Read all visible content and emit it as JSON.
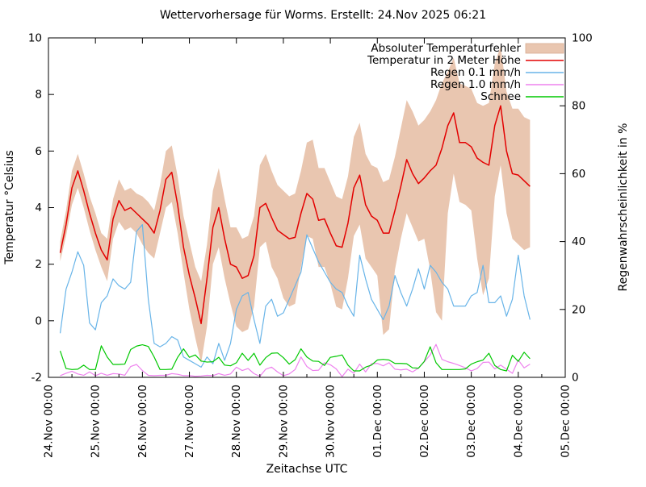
{
  "title": "Wettervorhersage für Worms. Erstellt: 24.Nov 2025 06:21",
  "chart_data": {
    "type": "line",
    "title": "Wettervorhersage für Worms. Erstellt: 24.Nov 2025 06:21",
    "xlabel": "Zeitachse UTC",
    "ylabel_left": "Temperatur °Celsius",
    "ylabel_right": "Regenwahrscheinlichkeit in %",
    "ylim_left": [
      -2,
      10
    ],
    "ylim_right": [
      0,
      100
    ],
    "grid": false,
    "legend_position": "top-right-inside",
    "x_range_hours": [
      0,
      264
    ],
    "x_tick_labels": [
      "24.Nov 00:00",
      "25.Nov 00:00",
      "26.Nov 00:00",
      "27.Nov 00:00",
      "28.Nov 00:00",
      "29.Nov 00:00",
      "30.Nov 00:00",
      "01.Dec 00:00",
      "02.Dec 00:00",
      "03.Dec 00:00",
      "04.Dec 00:00",
      "05.Dec 00:00"
    ],
    "x_tick_hours": [
      0,
      24,
      48,
      72,
      96,
      120,
      144,
      168,
      192,
      216,
      240,
      264
    ],
    "x_minor_tick_hours": [
      12,
      36,
      60,
      84,
      108,
      132,
      156,
      180,
      204,
      228,
      252
    ],
    "y_ticks_left": [
      -2,
      0,
      2,
      4,
      6,
      8,
      10
    ],
    "y_ticks_right": [
      0,
      20,
      40,
      60,
      80,
      100
    ],
    "x_hours": [
      6,
      9,
      12,
      15,
      18,
      21,
      24,
      27,
      30,
      33,
      36,
      39,
      42,
      45,
      48,
      51,
      54,
      57,
      60,
      63,
      66,
      69,
      72,
      75,
      78,
      81,
      84,
      87,
      90,
      93,
      96,
      99,
      102,
      105,
      108,
      111,
      114,
      117,
      120,
      123,
      126,
      129,
      132,
      135,
      138,
      141,
      144,
      147,
      150,
      153,
      156,
      159,
      162,
      165,
      168,
      171,
      174,
      177,
      180,
      183,
      186,
      189,
      192,
      195,
      198,
      201,
      204,
      207,
      210,
      213,
      216,
      219,
      222,
      225,
      228,
      231,
      234,
      237,
      240,
      243,
      246
    ],
    "series": [
      {
        "name": "Absoluter Temperaturfehler",
        "type": "band",
        "axis": "left",
        "color": "#e9c6b0",
        "upper": [
          2.8,
          3.9,
          5.3,
          5.9,
          5.2,
          4.4,
          3.8,
          3.1,
          2.9,
          4.3,
          5.0,
          4.6,
          4.7,
          4.5,
          4.4,
          4.2,
          3.9,
          4.8,
          6.0,
          6.2,
          5.1,
          3.7,
          2.8,
          1.9,
          1.4,
          2.7,
          4.6,
          5.4,
          4.3,
          3.3,
          3.3,
          2.9,
          3.0,
          3.7,
          5.5,
          5.9,
          5.3,
          4.8,
          4.6,
          4.4,
          4.5,
          5.3,
          6.3,
          6.4,
          5.4,
          5.4,
          4.9,
          4.4,
          4.3,
          5.1,
          6.5,
          7.0,
          5.9,
          5.5,
          5.4,
          4.9,
          5.0,
          5.8,
          6.8,
          7.8,
          7.4,
          6.9,
          7.1,
          7.4,
          7.8,
          8.4,
          8.8,
          9.3,
          8.4,
          8.3,
          8.2,
          7.7,
          7.6,
          7.7,
          9.1,
          9.7,
          8.1,
          7.5,
          7.5,
          7.2,
          7.1
        ],
        "lower": [
          2.1,
          3.0,
          4.1,
          4.7,
          4.0,
          3.2,
          2.5,
          1.9,
          1.4,
          2.9,
          3.5,
          3.2,
          3.3,
          3.1,
          2.7,
          2.4,
          2.2,
          3.1,
          4.0,
          4.2,
          3.1,
          1.7,
          0.4,
          -0.6,
          -1.5,
          -0.2,
          2.0,
          2.6,
          1.5,
          0.6,
          -0.2,
          -0.4,
          -0.3,
          0.5,
          2.6,
          2.8,
          1.9,
          1.5,
          0.8,
          0.5,
          0.6,
          1.9,
          3.0,
          2.9,
          1.9,
          1.9,
          1.3,
          0.5,
          0.4,
          1.5,
          3.0,
          3.4,
          2.2,
          1.9,
          1.6,
          -0.5,
          -0.3,
          1.8,
          2.9,
          3.8,
          3.3,
          2.8,
          2.9,
          1.8,
          0.3,
          0.0,
          3.8,
          5.2,
          4.2,
          4.1,
          3.9,
          2.2,
          0.9,
          1.5,
          4.4,
          5.5,
          3.8,
          2.9,
          2.7,
          2.5,
          2.6
        ]
      },
      {
        "name": "Temperatur in 2 Meter Höhe",
        "type": "line",
        "axis": "left",
        "color": "#e30000",
        "values": [
          2.4,
          3.4,
          4.7,
          5.3,
          4.6,
          3.8,
          3.1,
          2.5,
          2.15,
          3.6,
          4.25,
          3.9,
          4.0,
          3.8,
          3.6,
          3.4,
          3.1,
          3.9,
          5.0,
          5.25,
          4.1,
          2.6,
          1.6,
          0.8,
          -0.1,
          1.5,
          3.3,
          4.0,
          2.9,
          2.0,
          1.9,
          1.5,
          1.6,
          2.3,
          4.0,
          4.15,
          3.65,
          3.2,
          3.05,
          2.9,
          2.95,
          3.8,
          4.5,
          4.3,
          3.55,
          3.6,
          3.1,
          2.65,
          2.6,
          3.45,
          4.7,
          5.15,
          4.1,
          3.7,
          3.55,
          3.1,
          3.1,
          3.9,
          4.75,
          5.7,
          5.2,
          4.85,
          5.05,
          5.3,
          5.5,
          6.1,
          6.9,
          7.35,
          6.3,
          6.3,
          6.15,
          5.75,
          5.6,
          5.5,
          6.9,
          7.6,
          6.0,
          5.2,
          5.15,
          4.95,
          4.75
        ]
      },
      {
        "name": "Regen 0.1 mm/h",
        "type": "line",
        "axis": "right",
        "color": "#68b4e8",
        "values": [
          13,
          26,
          31,
          37,
          33,
          16,
          14,
          22,
          24,
          29,
          27,
          26,
          28,
          43,
          45,
          23,
          10,
          9,
          10,
          12,
          11,
          6,
          5,
          4,
          3,
          6,
          4,
          10,
          5,
          10,
          20,
          24,
          25,
          17,
          10,
          21,
          23,
          18,
          19,
          23,
          27,
          31,
          42,
          38,
          34,
          31,
          28,
          26,
          25,
          21,
          18,
          36,
          29,
          23,
          20,
          17,
          21,
          30,
          25,
          21,
          26,
          32,
          26,
          33,
          31,
          28,
          26,
          21,
          21,
          21,
          24,
          25,
          33,
          22,
          22,
          24,
          18,
          23,
          36,
          24,
          17
        ]
      },
      {
        "name": "Regen 1.0 mm/h",
        "type": "line",
        "axis": "right",
        "color": "#ee82ee",
        "values": [
          0.5,
          1.2,
          1.8,
          1.0,
          0.6,
          1.6,
          0.5,
          1.2,
          0.6,
          1.1,
          1.0,
          0.6,
          3.2,
          3.8,
          2.0,
          0.6,
          0.5,
          0.6,
          0.6,
          1.1,
          0.9,
          0.5,
          0.5,
          0.3,
          0.4,
          0.6,
          0.5,
          1.1,
          0.6,
          1.0,
          3.0,
          2.0,
          2.6,
          1.1,
          0.3,
          2.4,
          3.0,
          1.6,
          0.5,
          1.0,
          2.3,
          6.0,
          3.2,
          2.0,
          2.1,
          4.3,
          3.7,
          2.5,
          0.2,
          2.4,
          1.2,
          3.9,
          1.6,
          4.0,
          4.1,
          3.4,
          4.3,
          2.4,
          2.2,
          2.4,
          1.6,
          2.7,
          4.6,
          6.6,
          9.7,
          5.3,
          4.6,
          4.1,
          3.5,
          2.8,
          1.9,
          2.6,
          4.4,
          4.5,
          2.5,
          3.6,
          2.4,
          1.2,
          5.1,
          2.8,
          3.9
        ]
      },
      {
        "name": "Schnee",
        "type": "line",
        "axis": "right",
        "color": "#00c800",
        "values": [
          7.8,
          2.6,
          2.3,
          2.4,
          3.6,
          2.3,
          2.3,
          9.3,
          6.0,
          3.8,
          3.8,
          3.9,
          8.2,
          9.2,
          9.6,
          9.1,
          6.0,
          2.3,
          2.3,
          2.4,
          5.9,
          8.4,
          5.9,
          6.6,
          4.8,
          4.5,
          4.6,
          5.9,
          3.6,
          3.4,
          4.3,
          7.1,
          5.0,
          7.1,
          3.6,
          5.8,
          7.1,
          7.2,
          5.8,
          3.9,
          5.2,
          8.4,
          6.0,
          4.8,
          4.7,
          3.5,
          5.9,
          6.2,
          6.6,
          3.6,
          1.9,
          1.9,
          3.0,
          3.6,
          5.1,
          5.3,
          5.1,
          4.1,
          4.1,
          4.0,
          2.8,
          2.7,
          4.7,
          9.0,
          4.3,
          2.3,
          2.3,
          2.3,
          2.3,
          2.5,
          3.9,
          4.6,
          5.1,
          7.1,
          3.5,
          2.3,
          1.9,
          6.5,
          4.7,
          7.4,
          5.5
        ]
      }
    ],
    "colors": {
      "background": "#ffffff",
      "axis": "#000000",
      "error_band": "#e9c6b0",
      "temperature": "#e30000",
      "rain01": "#68b4e8",
      "rain10": "#ee82ee",
      "snow": "#00c800"
    }
  }
}
